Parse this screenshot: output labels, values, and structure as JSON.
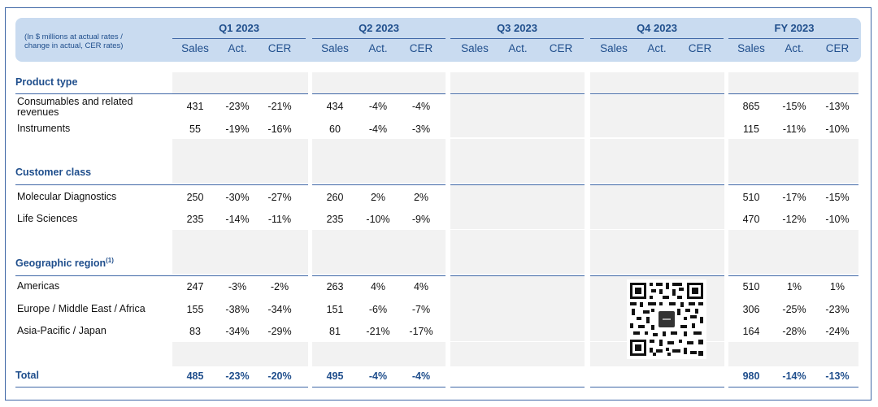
{
  "header": {
    "note_line1": "(In $ millions at actual rates /",
    "note_line2": "change in actual, CER rates)",
    "periods": [
      "Q1 2023",
      "Q2 2023",
      "Q3 2023",
      "Q4 2023",
      "FY 2023"
    ],
    "subcols": [
      "Sales",
      "Act.",
      "CER"
    ]
  },
  "sections": {
    "product": {
      "title": "Product type",
      "rows": [
        {
          "label": "Consumables and related revenues",
          "label_l1": "Consumables and related",
          "label_l2": "revenues",
          "q1": [
            "431",
            "-23%",
            "-21%"
          ],
          "q2": [
            "434",
            "-4%",
            "-4%"
          ],
          "fy": [
            "865",
            "-15%",
            "-13%"
          ]
        },
        {
          "label": "Instruments",
          "q1": [
            "55",
            "-19%",
            "-16%"
          ],
          "q2": [
            "60",
            "-4%",
            "-3%"
          ],
          "fy": [
            "115",
            "-11%",
            "-10%"
          ]
        }
      ]
    },
    "customer": {
      "title": "Customer class",
      "rows": [
        {
          "label": "Molecular Diagnostics",
          "q1": [
            "250",
            "-30%",
            "-27%"
          ],
          "q2": [
            "260",
            "2%",
            "2%"
          ],
          "fy": [
            "510",
            "-17%",
            "-15%"
          ]
        },
        {
          "label": "Life Sciences",
          "q1": [
            "235",
            "-14%",
            "-11%"
          ],
          "q2": [
            "235",
            "-10%",
            "-9%"
          ],
          "fy": [
            "470",
            "-12%",
            "-10%"
          ]
        }
      ]
    },
    "geo": {
      "title": "Geographic region",
      "title_sup": "(1)",
      "rows": [
        {
          "label": "Americas",
          "q1": [
            "247",
            "-3%",
            "-2%"
          ],
          "q2": [
            "263",
            "4%",
            "4%"
          ],
          "fy": [
            "510",
            "1%",
            "1%"
          ]
        },
        {
          "label": "Europe / Middle East / Africa",
          "q1": [
            "155",
            "-38%",
            "-34%"
          ],
          "q2": [
            "151",
            "-6%",
            "-7%"
          ],
          "fy": [
            "306",
            "-25%",
            "-23%"
          ]
        },
        {
          "label": "Asia-Pacific / Japan",
          "q1": [
            "83",
            "-34%",
            "-29%"
          ],
          "q2": [
            "81",
            "-21%",
            "-17%"
          ],
          "fy": [
            "164",
            "-28%",
            "-24%"
          ]
        }
      ]
    }
  },
  "total": {
    "label": "Total",
    "q1": [
      "485",
      "-23%",
      "-20%"
    ],
    "q2": [
      "495",
      "-4%",
      "-4%"
    ],
    "fy": [
      "980",
      "-14%",
      "-13%"
    ]
  },
  "qr": {
    "icon": "qr-code-icon"
  }
}
